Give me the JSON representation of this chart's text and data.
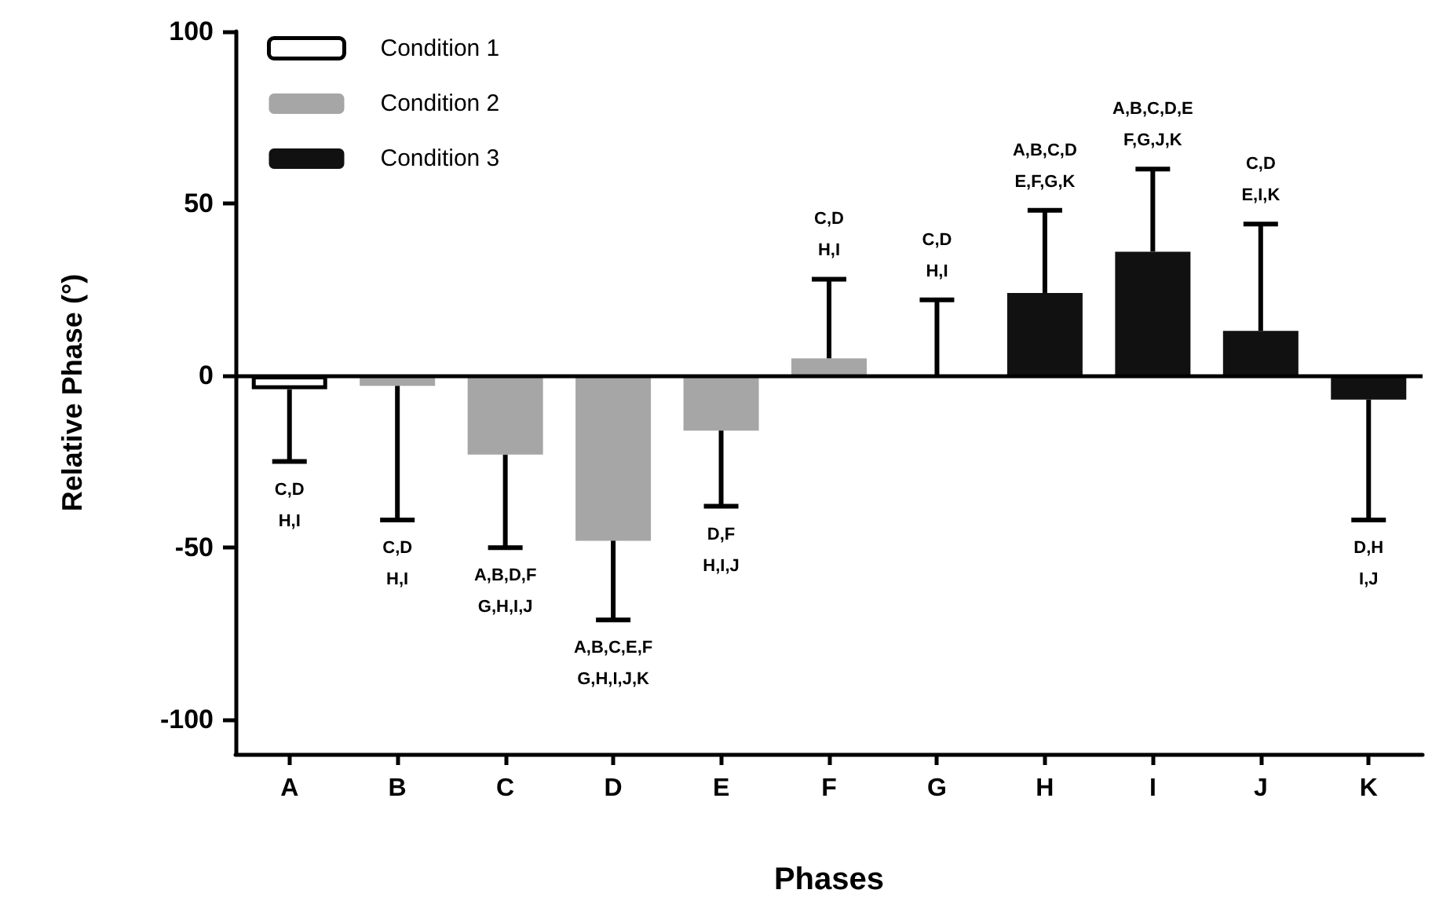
{
  "chart_data": {
    "type": "bar",
    "xlabel": "Phases",
    "ylabel": "Relative Phase (°)",
    "categories": [
      "A",
      "B",
      "C",
      "D",
      "E",
      "F",
      "G",
      "H",
      "I",
      "J",
      "K"
    ],
    "series": [
      {
        "name": "Condition 1",
        "color": "#ffffff",
        "values": [
          -4,
          null,
          null,
          null,
          null,
          null,
          null,
          null,
          null,
          null,
          null
        ],
        "errors": [
          [
            -25,
            -4
          ],
          null,
          null,
          null,
          null,
          null,
          null,
          null,
          null,
          null,
          null
        ]
      },
      {
        "name": "Condition 2",
        "color": "#a6a6a6",
        "values": [
          null,
          -3,
          -23,
          -48,
          -16,
          5,
          0,
          null,
          null,
          null,
          null
        ],
        "errors": [
          null,
          [
            -42,
            -3
          ],
          [
            -50,
            -23
          ],
          [
            -71,
            -48
          ],
          [
            -38,
            -16
          ],
          [
            5,
            28
          ],
          [
            0,
            22
          ],
          null,
          null,
          null,
          null
        ]
      },
      {
        "name": "Condition 3",
        "color": "#111111",
        "values": [
          null,
          null,
          null,
          null,
          null,
          null,
          null,
          24,
          36,
          13,
          -7
        ],
        "errors": [
          null,
          null,
          null,
          null,
          null,
          null,
          null,
          [
            24,
            48
          ],
          [
            36,
            60
          ],
          [
            13,
            44
          ],
          [
            -42,
            -7
          ]
        ]
      }
    ],
    "ylim": [
      -110,
      100
    ],
    "yticks": [
      -100,
      -50,
      0,
      50,
      100
    ],
    "ref_lines": [
      {
        "axis": "y",
        "value": 0,
        "color": "#000000"
      }
    ],
    "annotations": [
      {
        "text": "C,D\nH,I",
        "x": "A",
        "y": -25
      },
      {
        "text": "C,D\nH,I",
        "x": "B",
        "y": -42
      },
      {
        "text": "A,B,D,F\nG,H,I,J",
        "x": "C",
        "y": -50
      },
      {
        "text": "A,B,C,E,F\nG,H,I,J,K",
        "x": "D",
        "y": -71
      },
      {
        "text": "D,F\nH,I,J",
        "x": "E",
        "y": -38
      },
      {
        "text": "C,D\nH,I",
        "x": "F",
        "y": 28
      },
      {
        "text": "C,D\nH,I",
        "x": "G",
        "y": 22
      },
      {
        "text": "A,B,C,D\nE,F,G,K",
        "x": "H",
        "y": 48
      },
      {
        "text": "A,B,C,D,E\nF,G,J,K",
        "x": "I",
        "y": 60
      },
      {
        "text": "C,D\nE,I,K",
        "x": "J",
        "y": 44
      },
      {
        "text": "D,H\nI,J",
        "x": "K",
        "y": -42
      }
    ],
    "legend": "top left",
    "grid": false
  }
}
